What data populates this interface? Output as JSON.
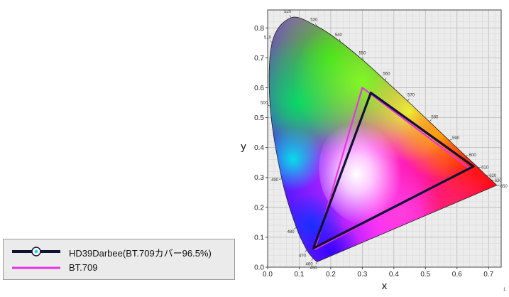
{
  "chart_data": {
    "type": "scatter",
    "title": "",
    "xlabel": "x",
    "ylabel": "y",
    "xlim": [
      0,
      0.74
    ],
    "ylim": [
      0,
      0.86
    ],
    "x_ticks": [
      "0.0",
      "0.1",
      "0.2",
      "0.3",
      "0.4",
      "0.5",
      "0.6",
      "0.7"
    ],
    "y_ticks": [
      "0.0",
      "0.1",
      "0.2",
      "0.3",
      "0.4",
      "0.5",
      "0.6",
      "0.7",
      "0.8"
    ],
    "grid": true,
    "legend_position": "bottom-left (outside plot)",
    "spectral_locus": {
      "labels": [
        "450",
        "460",
        "470",
        "480",
        "490",
        "500",
        "510",
        "520",
        "530",
        "540",
        "550",
        "560",
        "570",
        "580",
        "590",
        "600",
        "610",
        "620",
        "630",
        "650"
      ],
      "x": [
        0.157,
        0.144,
        0.124,
        0.091,
        0.045,
        0.008,
        0.014,
        0.074,
        0.155,
        0.23,
        0.302,
        0.373,
        0.444,
        0.512,
        0.575,
        0.627,
        0.666,
        0.691,
        0.708,
        0.726
      ],
      "y": [
        0.018,
        0.03,
        0.058,
        0.133,
        0.295,
        0.538,
        0.75,
        0.834,
        0.806,
        0.754,
        0.692,
        0.624,
        0.555,
        0.487,
        0.424,
        0.372,
        0.334,
        0.308,
        0.292,
        0.274
      ]
    },
    "series": [
      {
        "name": "HD39Darbee(BT.709カバー96.5%)",
        "color": "#101233",
        "x": [
          0.652,
          0.327,
          0.145
        ],
        "y": [
          0.337,
          0.583,
          0.063
        ]
      },
      {
        "name": "BT.709",
        "color": "#e633e6",
        "x": [
          0.64,
          0.3,
          0.15
        ],
        "y": [
          0.33,
          0.6,
          0.06
        ]
      }
    ]
  },
  "page_number": "1",
  "colors": {
    "background": "#ffffff",
    "plot_background": "#ececec",
    "legend_background": "#ebebeb"
  }
}
